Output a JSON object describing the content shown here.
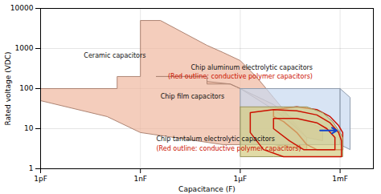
{
  "chart_data": {
    "type": "region",
    "xlabel": "Capacitance (F)",
    "ylabel": "Rated voltage (VDC)",
    "log": true,
    "grid": true,
    "xlim": [
      1e-12,
      0.01
    ],
    "xticks": [
      {
        "value": 1e-12,
        "label": "1pF"
      },
      {
        "value": 1e-09,
        "label": "1nF"
      },
      {
        "value": 1e-06,
        "label": "1μF"
      },
      {
        "value": 0.001,
        "label": "1mF"
      }
    ],
    "ylim": [
      1,
      10000
    ],
    "yticks": [
      1,
      10,
      100,
      1000,
      10000
    ],
    "series": [
      {
        "type": "area",
        "color": "#f0b8a0",
        "x": [
          1e-12,
          1e-12,
          2e-10,
          2e-10,
          1e-09,
          1e-09,
          4e-09,
          1e-07,
          3e-07,
          1e-06,
          3e-06,
          1e-05,
          3e-05,
          0.0001,
          0.0001,
          1e-05,
          1e-06,
          3e-07,
          1e-09,
          1e-10,
          1e-12
        ],
        "values": [
          50,
          100,
          100,
          200,
          200,
          5000,
          5000,
          1200,
          800,
          500,
          200,
          60,
          20,
          6,
          3,
          4,
          4,
          4,
          8,
          20,
          50
        ]
      },
      {
        "type": "area",
        "color": "#f0b8a0",
        "x": [
          3e-09,
          1e-07,
          1e-07,
          5e-07,
          1e-06,
          1e-05,
          3e-05,
          0.0001,
          0.0003,
          0.0003,
          0.0001,
          3e-05,
          1e-05,
          1e-06,
          5e-07,
          1e-07,
          1e-07,
          3e-09
        ],
        "values": [
          200,
          200,
          130,
          130,
          100,
          30,
          15,
          6,
          5,
          10,
          15,
          20,
          40,
          100,
          130,
          150,
          200,
          200
        ]
      },
      {
        "type": "area",
        "color": "#c8d8f0",
        "x": [
          1e-06,
          0.001,
          0.001,
          1e-06,
          1e-06
        ],
        "values": [
          100,
          100,
          4,
          4,
          100
        ]
      },
      {
        "type": "area",
        "color": "#c8d8f0",
        "x": [
          0.001,
          0.002,
          0.002,
          0.001,
          0.001
        ],
        "values": [
          100,
          60,
          3,
          4,
          100
        ]
      },
      {
        "type": "line",
        "color": "#cc1100",
        "x": [
          1e-05,
          5e-05,
          0.0002,
          0.0005,
          0.0009,
          0.0012,
          0.0012,
          0.0005,
          0.0002,
          0.0001,
          5e-05,
          2e-05,
          1e-05,
          1e-05
        ],
        "values": [
          30,
          35,
          30,
          20,
          12,
          8,
          3,
          3,
          3,
          4,
          8,
          15,
          20,
          30
        ]
      },
      {
        "type": "area",
        "color": "#d4cc80",
        "x": [
          1e-06,
          2e-05,
          0.0001,
          0.0003,
          0.0006,
          0.001,
          0.0012,
          0.0012,
          0.0006,
          0.0002,
          5e-05,
          1e-05,
          1e-06,
          1e-06
        ],
        "values": [
          35,
          35,
          35,
          25,
          15,
          8,
          6,
          2,
          2,
          2,
          2,
          2,
          2,
          35
        ]
      },
      {
        "type": "line",
        "color": "#cc1100",
        "x": [
          2e-06,
          1e-05,
          5e-05,
          0.0002,
          0.0005,
          0.0009,
          0.0011,
          0.0011,
          0.0005,
          0.0001,
          2e-05,
          5e-06,
          2e-06,
          2e-06
        ],
        "values": [
          25,
          30,
          28,
          22,
          14,
          8,
          5,
          2,
          2,
          2,
          2,
          3,
          8,
          25
        ]
      },
      {
        "type": "line",
        "color": "#cc1100",
        "x": [
          1e-05,
          5e-05,
          0.0002,
          0.0004,
          0.0007,
          0.0007,
          0.0003,
          8e-05,
          3e-05,
          1e-05,
          1e-05
        ],
        "values": [
          18,
          18,
          14,
          10,
          6,
          3,
          3,
          3,
          5,
          10,
          18
        ]
      }
    ],
    "annotations": [
      {
        "text": "Ceramic capacitors",
        "x": 2e-11,
        "y": 600,
        "color": "#111111"
      },
      {
        "text": "Chip film capacitors",
        "x": 4e-09,
        "y": 55,
        "color": "#111111"
      },
      {
        "text": "Chip aluminum electrolytic capacitors",
        "x": 0.00015,
        "y": 300,
        "color": "#111111"
      },
      {
        "text": "(Red outline: conductive polymer capacitors)",
        "x": 0.00015,
        "y": 180,
        "color": "#cc1100"
      },
      {
        "text": "Chip tantalum electrolytic capacitors",
        "x": 3e-09,
        "y": 5,
        "color": "#111111"
      },
      {
        "text": "(Red outline: conductive polymer capacitors)",
        "x": 3e-09,
        "y": 2.8,
        "color": "#cc1100"
      },
      {
        "type": "arrow",
        "x": 0.00025,
        "x_end": 0.0008,
        "y": 9,
        "color": "#1144cc"
      }
    ]
  }
}
